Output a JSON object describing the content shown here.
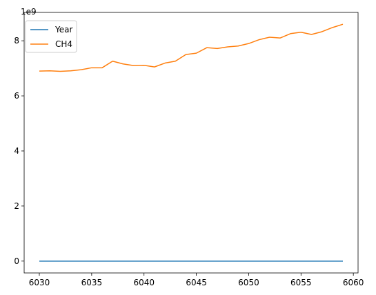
{
  "chart_data": {
    "type": "line",
    "offset_label": "1e9",
    "x": [
      6030,
      6031,
      6032,
      6033,
      6034,
      6035,
      6036,
      6037,
      6038,
      6039,
      6040,
      6041,
      6042,
      6043,
      6044,
      6045,
      6046,
      6047,
      6048,
      6049,
      6050,
      6051,
      6052,
      6053,
      6054,
      6055,
      6056,
      6057,
      6058,
      6059
    ],
    "series": [
      {
        "name": "Year",
        "color": "#1f77b4",
        "values": [
          6030,
          6031,
          6032,
          6033,
          6034,
          6035,
          6036,
          6037,
          6038,
          6039,
          6040,
          6041,
          6042,
          6043,
          6044,
          6045,
          6046,
          6047,
          6048,
          6049,
          6050,
          6051,
          6052,
          6053,
          6054,
          6055,
          6056,
          6057,
          6058,
          6059
        ]
      },
      {
        "name": "CH4",
        "color": "#ff7f0e",
        "values": [
          6900000000.0,
          6910000000.0,
          6890000000.0,
          6910000000.0,
          6950000000.0,
          7020000000.0,
          7020000000.0,
          7260000000.0,
          7160000000.0,
          7100000000.0,
          7110000000.0,
          7050000000.0,
          7190000000.0,
          7260000000.0,
          7500000000.0,
          7550000000.0,
          7750000000.0,
          7720000000.0,
          7780000000.0,
          7810000000.0,
          7900000000.0,
          8040000000.0,
          8130000000.0,
          8100000000.0,
          8260000000.0,
          8310000000.0,
          8230000000.0,
          8330000000.0,
          8480000000.0,
          8600000000.0
        ]
      }
    ],
    "xlim": [
      6028.55,
      6060.45
    ],
    "ylim": [
      -430000000.0,
      9030000000.0
    ],
    "xticks": [
      6030,
      6035,
      6040,
      6045,
      6050,
      6055,
      6060
    ],
    "yticks": [
      0,
      2,
      4,
      6,
      8
    ],
    "ytick_scale": 1000000000.0,
    "grid": false,
    "legend": "top-left"
  }
}
